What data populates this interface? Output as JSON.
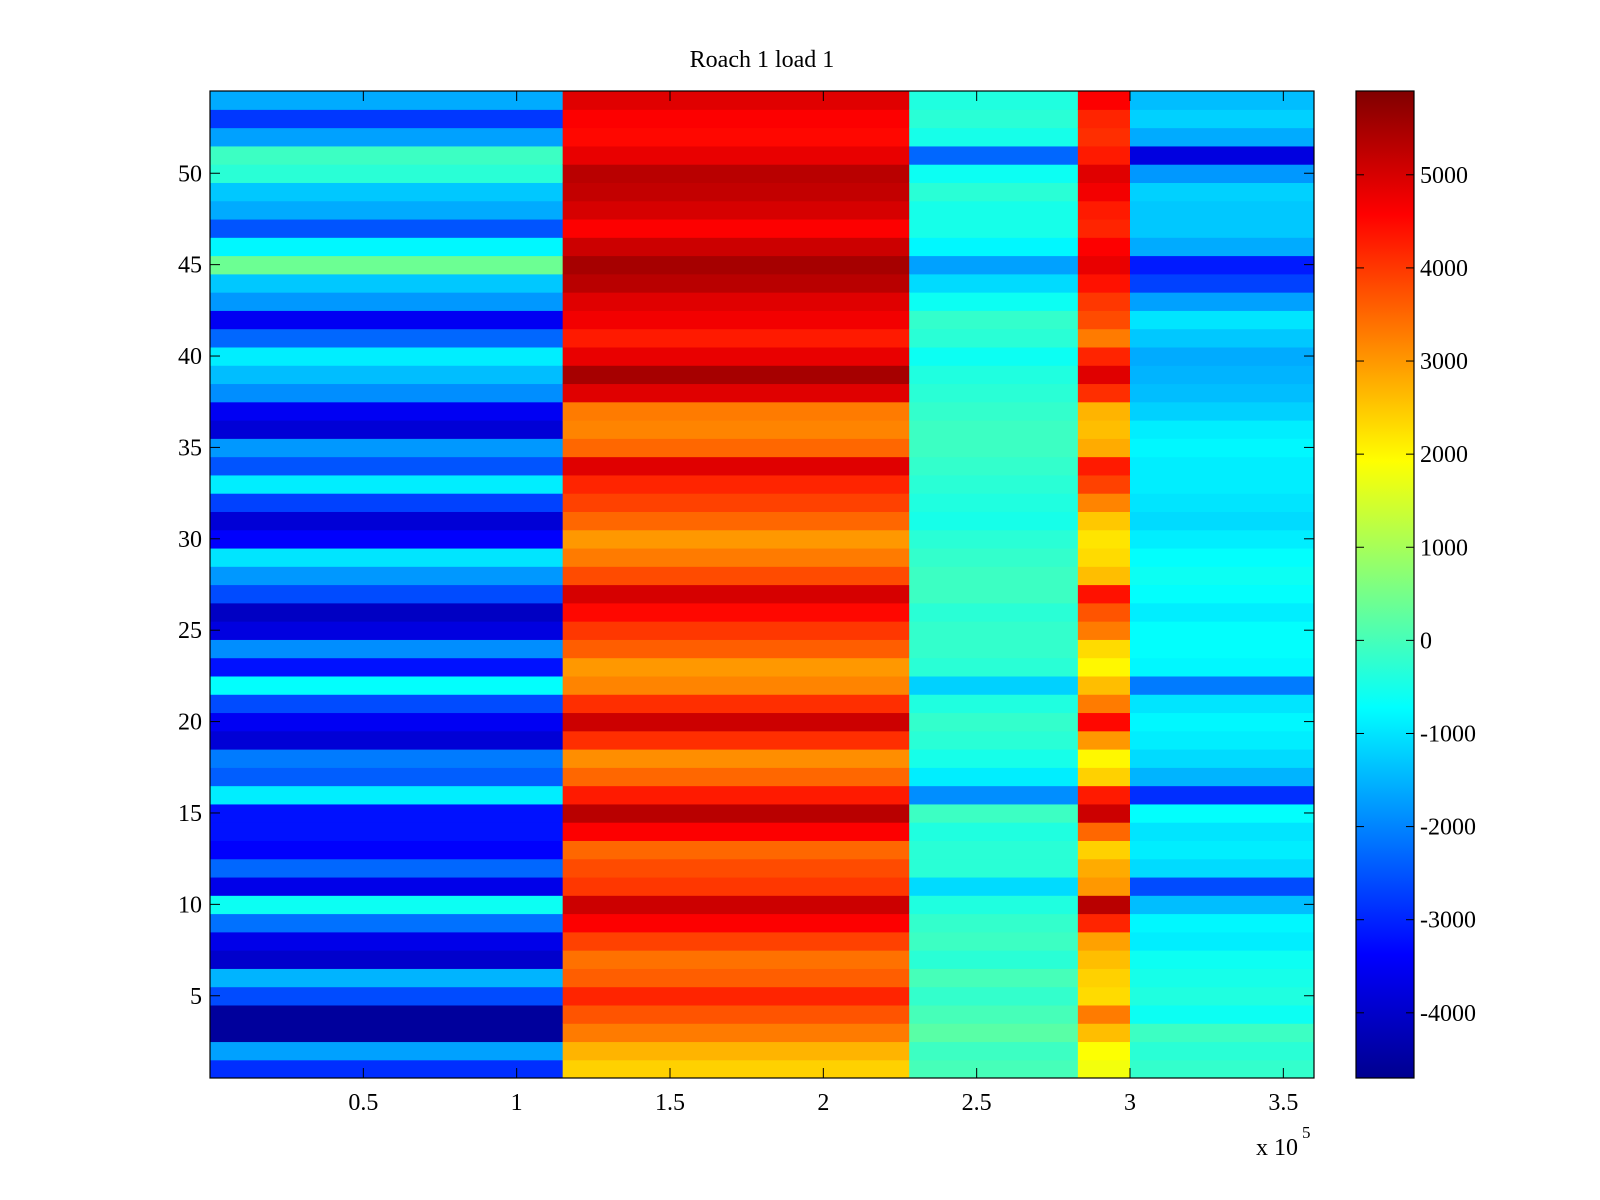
{
  "chart_data": {
    "type": "heatmap",
    "title": "Roach 1 load 1",
    "xlabel": "",
    "ylabel": "",
    "x_exponent_label": "x 10",
    "x_exponent_power": "5",
    "xlim": [
      0,
      3.6
    ],
    "ylim": [
      0.5,
      54.5
    ],
    "x_ticks": [
      0.5,
      1,
      1.5,
      2,
      2.5,
      3,
      3.5
    ],
    "x_tick_labels": [
      "0.5",
      "1",
      "1.5",
      "2",
      "2.5",
      "3",
      "3.5"
    ],
    "y_ticks": [
      5,
      10,
      15,
      20,
      25,
      30,
      35,
      40,
      45,
      50
    ],
    "y_tick_labels": [
      "5",
      "10",
      "15",
      "20",
      "25",
      "30",
      "35",
      "40",
      "45",
      "50"
    ],
    "colorbar": {
      "range": [
        -4700,
        5900
      ],
      "ticks": [
        -4000,
        -3000,
        -2000,
        -1000,
        0,
        1000,
        2000,
        3000,
        4000,
        5000
      ],
      "tick_labels": [
        "-4000",
        "-3000",
        "-2000",
        "-1000",
        "0",
        "1000",
        "2000",
        "3000",
        "4000",
        "5000"
      ],
      "colormap": "jet"
    },
    "rows": 54,
    "x_segments": [
      {
        "name": "pre",
        "x_start": 0.0,
        "x_end": 1.15
      },
      {
        "name": "active",
        "x_start": 1.15,
        "x_end": 2.28
      },
      {
        "name": "mid",
        "x_start": 2.28,
        "x_end": 2.83
      },
      {
        "name": "spike",
        "x_start": 2.83,
        "x_end": 3.0
      },
      {
        "name": "post",
        "x_start": 3.0,
        "x_end": 3.6
      }
    ],
    "row_values": {
      "pre": [
        -2900,
        -1700,
        -4400,
        -4400,
        -2600,
        -1500,
        -3900,
        -3600,
        -2200,
        -600,
        -3600,
        -2300,
        -3400,
        -3200,
        -3200,
        -900,
        -2400,
        -2100,
        -3800,
        -3500,
        -2600,
        -700,
        -3200,
        -1900,
        -3700,
        -4000,
        -2600,
        -1800,
        -1000,
        -3400,
        -3800,
        -2700,
        -900,
        -2500,
        -1800,
        -3800,
        -3500,
        -1900,
        -1400,
        -900,
        -2300,
        -3500,
        -1800,
        -1300,
        400,
        -800,
        -2500,
        -1600,
        -1300,
        -300,
        -100,
        -1700,
        -2800,
        -1600
      ],
      "active": [
        2400,
        2700,
        3300,
        3700,
        4200,
        3600,
        3400,
        3900,
        4600,
        5100,
        4000,
        3800,
        3500,
        4600,
        5300,
        4300,
        3500,
        3100,
        4100,
        5100,
        4100,
        3200,
        3000,
        3600,
        4000,
        4500,
        5000,
        3800,
        3300,
        3000,
        3500,
        3900,
        4200,
        4900,
        3500,
        3200,
        3300,
        4900,
        5500,
        4800,
        4300,
        4700,
        4900,
        5300,
        5500,
        5100,
        4600,
        5000,
        5200,
        5300,
        4800,
        4500,
        4600,
        4900
      ],
      "mid": [
        0,
        -100,
        200,
        0,
        -200,
        0,
        -300,
        -100,
        -200,
        -400,
        -1100,
        -300,
        -300,
        -400,
        -100,
        -1900,
        -900,
        -500,
        -300,
        -200,
        -400,
        -1200,
        -300,
        -200,
        -200,
        -300,
        -100,
        -100,
        -200,
        -300,
        -500,
        -400,
        -300,
        -200,
        -100,
        -100,
        -200,
        -300,
        -400,
        -600,
        -300,
        -200,
        -600,
        -1100,
        -1700,
        -800,
        -500,
        -500,
        -300,
        -600,
        -2300,
        -500,
        -300,
        -400
      ],
      "spike": [
        1800,
        1900,
        2600,
        3300,
        2300,
        2400,
        2600,
        2900,
        4200,
        5300,
        3000,
        2800,
        2400,
        3500,
        5100,
        4300,
        2400,
        2000,
        3000,
        4500,
        3300,
        2600,
        2000,
        2300,
        3300,
        3700,
        4400,
        2600,
        2300,
        2200,
        2500,
        3200,
        3900,
        4300,
        2800,
        2600,
        2700,
        4100,
        4900,
        4200,
        3300,
        3800,
        4000,
        4400,
        4800,
        4600,
        4200,
        4300,
        4700,
        4900,
        4300,
        4100,
        4200,
        4600
      ],
      "post": [
        -200,
        -300,
        -100,
        -600,
        -400,
        -500,
        -600,
        -900,
        -800,
        -1400,
        -2600,
        -1100,
        -900,
        -1000,
        -700,
        -2900,
        -1500,
        -1100,
        -900,
        -800,
        -1000,
        -2100,
        -800,
        -700,
        -700,
        -900,
        -700,
        -600,
        -700,
        -900,
        -1100,
        -1000,
        -900,
        -900,
        -800,
        -900,
        -1200,
        -1400,
        -1500,
        -1600,
        -1300,
        -1000,
        -1700,
        -2700,
        -3100,
        -1600,
        -1300,
        -1300,
        -1200,
        -1800,
        -3700,
        -1600,
        -1200,
        -1400
      ]
    }
  }
}
